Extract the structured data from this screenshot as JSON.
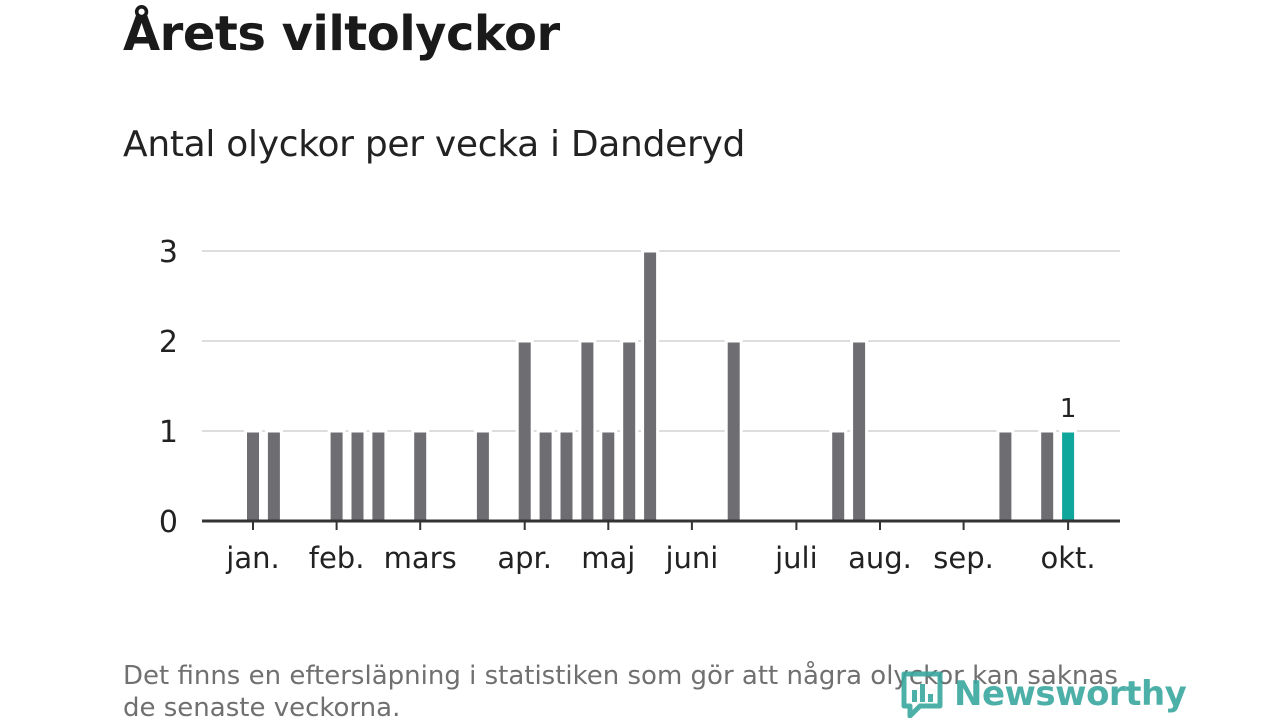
{
  "title": "Årets viltolyckor",
  "subtitle": "Antal olyckor per vecka i Danderyd",
  "footnote": "Det finns en eftersläpning i statistiken som gör att några olyckor kan saknas de senaste veckorna.",
  "brand": {
    "name": "Newsworthy",
    "color": "#3aa89f",
    "icon": "bar-chart-bubble-icon"
  },
  "colors": {
    "bar": "#6e6d72",
    "highlight": "#0fa69c",
    "grid": "#dddddd",
    "axis": "#333333"
  },
  "chart_data": {
    "type": "bar",
    "title": "Antal olyckor per vecka i Danderyd",
    "xlabel": "",
    "ylabel": "",
    "ylim": [
      0,
      3
    ],
    "yticks": [
      0,
      1,
      2,
      3
    ],
    "grid": true,
    "x_unit": "week",
    "x_range": [
      1,
      42
    ],
    "month_ticks": [
      {
        "label": "jan.",
        "week": 1
      },
      {
        "label": "feb.",
        "week": 5
      },
      {
        "label": "mars",
        "week": 9
      },
      {
        "label": "apr.",
        "week": 14
      },
      {
        "label": "maj",
        "week": 18
      },
      {
        "label": "juni",
        "week": 22
      },
      {
        "label": "juli",
        "week": 27
      },
      {
        "label": "aug.",
        "week": 31
      },
      {
        "label": "sep.",
        "week": 35
      },
      {
        "label": "okt.",
        "week": 40
      }
    ],
    "weeks": [
      1,
      2,
      5,
      6,
      7,
      9,
      12,
      14,
      15,
      16,
      17,
      18,
      19,
      20,
      24,
      29,
      30,
      37,
      39,
      40
    ],
    "values": [
      1,
      1,
      1,
      1,
      1,
      1,
      1,
      2,
      1,
      1,
      2,
      1,
      2,
      3,
      2,
      1,
      2,
      1,
      1,
      1
    ],
    "highlight_week": 40,
    "highlight_label": "1"
  }
}
